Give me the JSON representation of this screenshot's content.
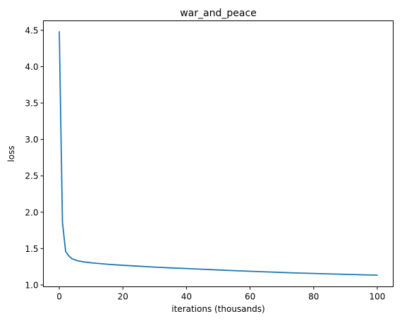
{
  "chart_data": {
    "type": "line",
    "title": "war_and_peace",
    "xlabel": "iterations (thousands)",
    "ylabel": "loss",
    "xlim": [
      -5,
      105
    ],
    "ylim": [
      0.975,
      4.63
    ],
    "xticks": [
      0,
      20,
      40,
      60,
      80,
      100
    ],
    "xtick_labels": [
      "0",
      "20",
      "40",
      "60",
      "80",
      "100"
    ],
    "yticks": [
      1.0,
      1.5,
      2.0,
      2.5,
      3.0,
      3.5,
      4.0,
      4.5
    ],
    "ytick_labels": [
      "1.0",
      "1.5",
      "2.0",
      "2.5",
      "3.0",
      "3.5",
      "4.0",
      "4.5"
    ],
    "grid": false,
    "series": [
      {
        "color": "#1f77b4",
        "x": [
          0,
          1,
          2,
          3,
          4,
          5,
          6,
          8,
          10,
          15,
          20,
          25,
          30,
          35,
          40,
          45,
          50,
          55,
          60,
          65,
          70,
          75,
          80,
          85,
          90,
          95,
          100
        ],
        "y": [
          4.48,
          1.86,
          1.46,
          1.4,
          1.36,
          1.345,
          1.33,
          1.315,
          1.305,
          1.285,
          1.27,
          1.258,
          1.245,
          1.235,
          1.226,
          1.216,
          1.206,
          1.197,
          1.188,
          1.18,
          1.172,
          1.164,
          1.158,
          1.152,
          1.146,
          1.14,
          1.135
        ]
      }
    ]
  }
}
